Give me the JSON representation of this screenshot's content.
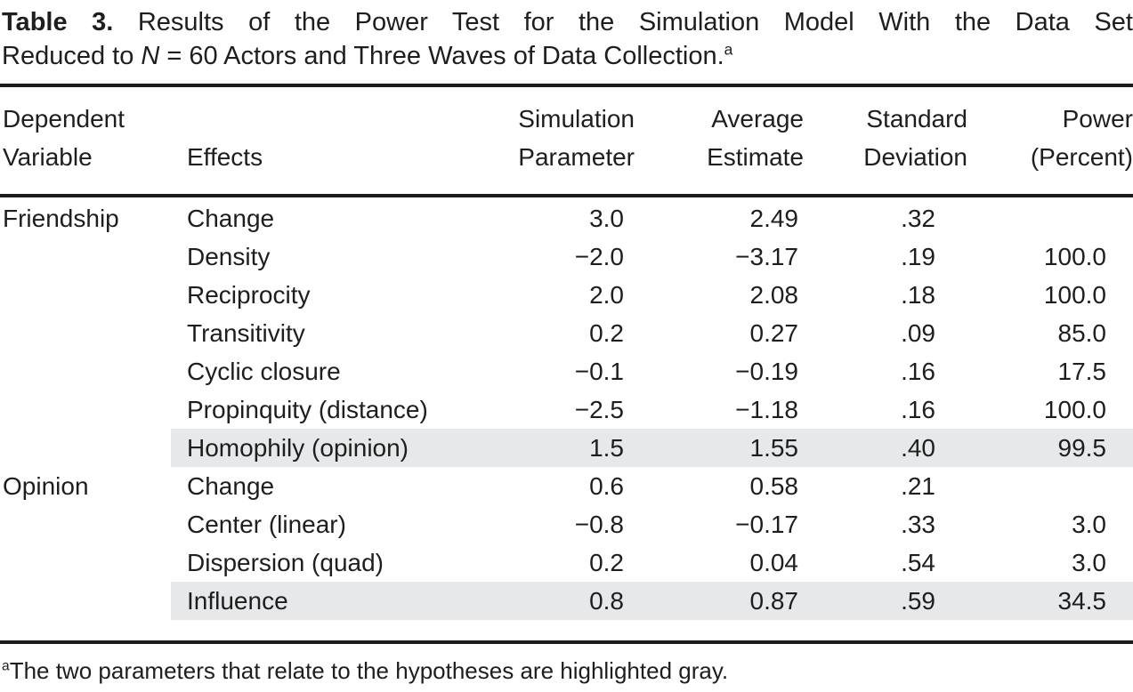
{
  "title": {
    "label": "Table 3.",
    "line1_rest": "Results of the Power Test for the Simulation Model With the Data Set",
    "line2_prefix": "Reduced to ",
    "line2_n": "N",
    "line2_rest": " = 60 Actors and Three Waves of Data Collection.",
    "line2_superscript": "a"
  },
  "table": {
    "headers": {
      "dependent_variable": {
        "line1": "Dependent",
        "line2": "Variable"
      },
      "effects": {
        "line1": "",
        "line2": "Effects"
      },
      "simulation_parameter": {
        "line1": "Simulation",
        "line2": "Parameter"
      },
      "average_estimate": {
        "line1": "Average",
        "line2": "Estimate"
      },
      "standard_deviation": {
        "line1": "Standard",
        "line2": "Deviation"
      },
      "power_percent": {
        "line1": "Power",
        "line2": "(Percent)"
      }
    },
    "rows": [
      {
        "group": "Friendship",
        "effect": "Change",
        "sim": "3.0",
        "avg": "2.49",
        "sd": ".32",
        "power": "",
        "highlight": false
      },
      {
        "group": "",
        "effect": "Density",
        "sim": "−2.0",
        "avg": "−3.17",
        "sd": ".19",
        "power": "100.0",
        "highlight": false
      },
      {
        "group": "",
        "effect": "Reciprocity",
        "sim": "2.0",
        "avg": "2.08",
        "sd": ".18",
        "power": "100.0",
        "highlight": false
      },
      {
        "group": "",
        "effect": "Transitivity",
        "sim": "0.2",
        "avg": "0.27",
        "sd": ".09",
        "power": "85.0",
        "highlight": false
      },
      {
        "group": "",
        "effect": "Cyclic closure",
        "sim": "−0.1",
        "avg": "−0.19",
        "sd": ".16",
        "power": "17.5",
        "highlight": false
      },
      {
        "group": "",
        "effect": "Propinquity (distance)",
        "sim": "−2.5",
        "avg": "−1.18",
        "sd": ".16",
        "power": "100.0",
        "highlight": false
      },
      {
        "group": "",
        "effect": "Homophily (opinion)",
        "sim": "1.5",
        "avg": "1.55",
        "sd": ".40",
        "power": "99.5",
        "highlight": true
      },
      {
        "group": "Opinion",
        "effect": "Change",
        "sim": "0.6",
        "avg": "0.58",
        "sd": ".21",
        "power": "",
        "highlight": false
      },
      {
        "group": "",
        "effect": "Center (linear)",
        "sim": "−0.8",
        "avg": "−0.17",
        "sd": ".33",
        "power": "3.0",
        "highlight": false
      },
      {
        "group": "",
        "effect": "Dispersion (quad)",
        "sim": "0.2",
        "avg": "0.04",
        "sd": ".54",
        "power": "3.0",
        "highlight": false
      },
      {
        "group": "",
        "effect": "Influence",
        "sim": "0.8",
        "avg": "0.87",
        "sd": ".59",
        "power": "34.5",
        "highlight": true
      }
    ]
  },
  "footnote": {
    "superscript": "a",
    "text": "The two parameters that relate to the hypotheses are highlighted gray."
  },
  "colors": {
    "highlight": "#e6e8e9",
    "text": "#1e1e1e",
    "rule": "#1c1c1c"
  }
}
